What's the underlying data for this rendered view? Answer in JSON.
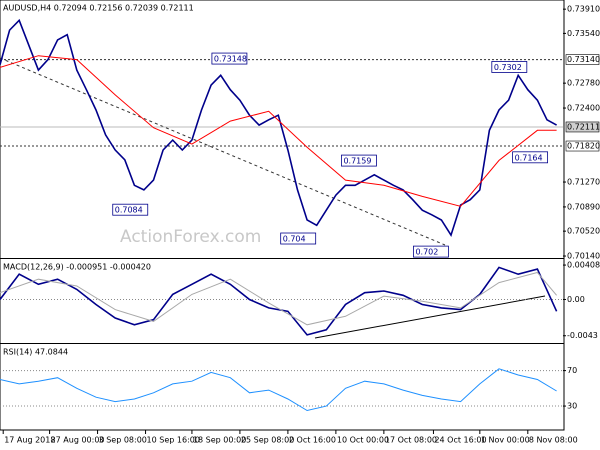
{
  "chart_data": [
    {
      "type": "line",
      "title": "AUDUSD,H4  0.72094 0.72156 0.72039 0.72111",
      "watermark": "ActionForex.com",
      "xlim": [
        0,
        352
      ],
      "ylim": [
        0.7011,
        0.7405
      ],
      "yticks": [
        {
          "value": 0.7391,
          "label": "0.73910"
        },
        {
          "value": 0.7354,
          "label": "0.73540"
        },
        {
          "value": 0.7278,
          "label": "0.72780"
        },
        {
          "value": 0.724,
          "label": "0.72400"
        },
        {
          "value": 0.7127,
          "label": "0.71270"
        },
        {
          "value": 0.7089,
          "label": "0.70890"
        },
        {
          "value": 0.7052,
          "label": "0.70520"
        },
        {
          "value": 0.7014,
          "label": "0.70140"
        }
      ],
      "series": [
        {
          "color": "#00008b",
          "x": [
            0,
            6,
            12,
            18,
            24,
            30,
            36,
            42,
            48,
            54,
            60,
            66,
            72,
            78,
            84,
            90,
            96,
            102,
            108,
            114,
            120,
            126,
            132,
            138,
            144,
            150,
            156,
            162,
            168,
            174,
            180,
            186,
            192,
            198,
            204,
            210,
            216,
            222,
            228,
            234,
            240,
            246,
            252,
            258,
            264,
            270,
            276,
            282,
            288,
            294,
            300,
            306,
            312,
            318,
            324,
            330,
            336,
            342,
            348
          ],
          "values": [
            0.7306,
            0.7359,
            0.7374,
            0.7336,
            0.7298,
            0.7314,
            0.7344,
            0.7352,
            0.7298,
            0.7268,
            0.7237,
            0.7199,
            0.7176,
            0.7161,
            0.7122,
            0.7115,
            0.713,
            0.7176,
            0.7191,
            0.7176,
            0.7191,
            0.7237,
            0.7275,
            0.729,
            0.7268,
            0.7252,
            0.7229,
            0.7214,
            0.7222,
            0.7229,
            0.7176,
            0.7115,
            0.7069,
            0.7061,
            0.7084,
            0.7107,
            0.7122,
            0.7122,
            0.713,
            0.7138,
            0.713,
            0.7122,
            0.7115,
            0.71,
            0.7084,
            0.7077,
            0.7069,
            0.7046,
            0.7092,
            0.71,
            0.7115,
            0.7206,
            0.7237,
            0.7252,
            0.729,
            0.7268,
            0.7252,
            0.7222,
            0.7214
          ]
        },
        {
          "color": "#ff0000",
          "x": [
            0,
            24,
            48,
            72,
            96,
            120,
            144,
            168,
            192,
            216,
            240,
            264,
            288,
            312,
            336,
            348
          ],
          "values": [
            0.7302,
            0.732,
            0.7314,
            0.726,
            0.721,
            0.7185,
            0.722,
            0.7235,
            0.718,
            0.713,
            0.7122,
            0.7105,
            0.709,
            0.716,
            0.7206,
            0.7206
          ]
        }
      ],
      "levels": [
        {
          "value": 0.7314,
          "label": "0.73140",
          "style": "dashed"
        },
        {
          "value": 0.72111,
          "style": "solid"
        },
        {
          "value": 0.7182,
          "label": "0.71820",
          "style": "dashed"
        }
      ],
      "annotations": [
        {
          "x": 155,
          "value": 0.73148
        },
        {
          "x": 93,
          "value": 0.7084
        },
        {
          "x": 198,
          "value": 0.704
        },
        {
          "x": 236,
          "value": 0.7159
        },
        {
          "x": 281,
          "value": 0.702
        },
        {
          "x": 330,
          "value": 0.7302
        },
        {
          "x": 343,
          "value": 0.7164
        }
      ]
    },
    {
      "type": "line",
      "title": "MACD(12,26,9) -0.000951 -0.000420",
      "xlim": [
        0,
        352
      ],
      "ylim": [
        -0.00516,
        0.0048
      ],
      "yticks": [
        0.00408,
        {
          "value": 0,
          "label": "0.00"
        },
        -0.0043
      ],
      "series": [
        {
          "color": "#00008b",
          "x": [
            0,
            12,
            24,
            36,
            48,
            60,
            72,
            84,
            96,
            108,
            120,
            132,
            144,
            156,
            168,
            180,
            192,
            204,
            216,
            228,
            240,
            252,
            264,
            276,
            288,
            300,
            312,
            324,
            336,
            348
          ],
          "values": [
            0,
            0.003,
            0.0018,
            0.0024,
            0.0012,
            -0.0006,
            -0.0022,
            -0.003,
            -0.0024,
            0.0006,
            0.0018,
            0.003,
            0.0018,
            0,
            -0.001,
            -0.0014,
            -0.0042,
            -0.0036,
            -0.0006,
            0.0008,
            0.001,
            0.0005,
            -0.0006,
            -0.001,
            -0.0012,
            0.0006,
            0.0038,
            0.003,
            0.0036,
            -0.0014
          ]
        },
        {
          "color": "#a9a9a9",
          "x": [
            0,
            24,
            48,
            72,
            96,
            120,
            144,
            168,
            192,
            216,
            240,
            264,
            288,
            312,
            336,
            348
          ],
          "values": [
            0.0008,
            0.0024,
            0.0016,
            -0.0012,
            -0.0026,
            0.0006,
            0.0024,
            -0.0004,
            -0.003,
            -0.002,
            0.0004,
            -0.0002,
            -0.001,
            0.002,
            0.0032,
            0.0005
          ]
        }
      ]
    },
    {
      "type": "line",
      "title": "RSI(14) 47.0844",
      "xlim": [
        0,
        352
      ],
      "ylim": [
        3,
        100
      ],
      "yticks": [
        70,
        30
      ],
      "xticks": [
        {
          "value": 2,
          "label": "17 Aug 2018"
        },
        {
          "value": 31,
          "label": "27 Aug 00:00"
        },
        {
          "value": 61,
          "label": "3 Sep 08:00"
        },
        {
          "value": 91,
          "label": "10 Sep 16:00"
        },
        {
          "value": 120,
          "label": "18 Sep 00:00"
        },
        {
          "value": 150,
          "label": "25 Sep 08:00"
        },
        {
          "value": 180,
          "label": "2 Oct 16:00"
        },
        {
          "value": 210,
          "label": "10 Oct 00:00"
        },
        {
          "value": 240,
          "label": "17 Oct 08:00"
        },
        {
          "value": 271,
          "label": "24 Oct 16:00"
        },
        {
          "value": 300,
          "label": "1 Nov 00:00"
        },
        {
          "value": 330,
          "label": "8 Nov 08:00"
        }
      ],
      "series": [
        {
          "color": "#1e90ff",
          "x": [
            0,
            12,
            24,
            36,
            48,
            60,
            72,
            84,
            96,
            108,
            120,
            132,
            144,
            156,
            168,
            180,
            192,
            204,
            216,
            228,
            240,
            252,
            264,
            276,
            288,
            300,
            312,
            324,
            336,
            348
          ],
          "values": [
            60,
            55,
            58,
            62,
            50,
            40,
            35,
            38,
            45,
            55,
            58,
            68,
            62,
            45,
            48,
            38,
            25,
            30,
            50,
            58,
            55,
            48,
            42,
            38,
            35,
            55,
            72,
            65,
            60,
            47
          ]
        }
      ]
    }
  ]
}
